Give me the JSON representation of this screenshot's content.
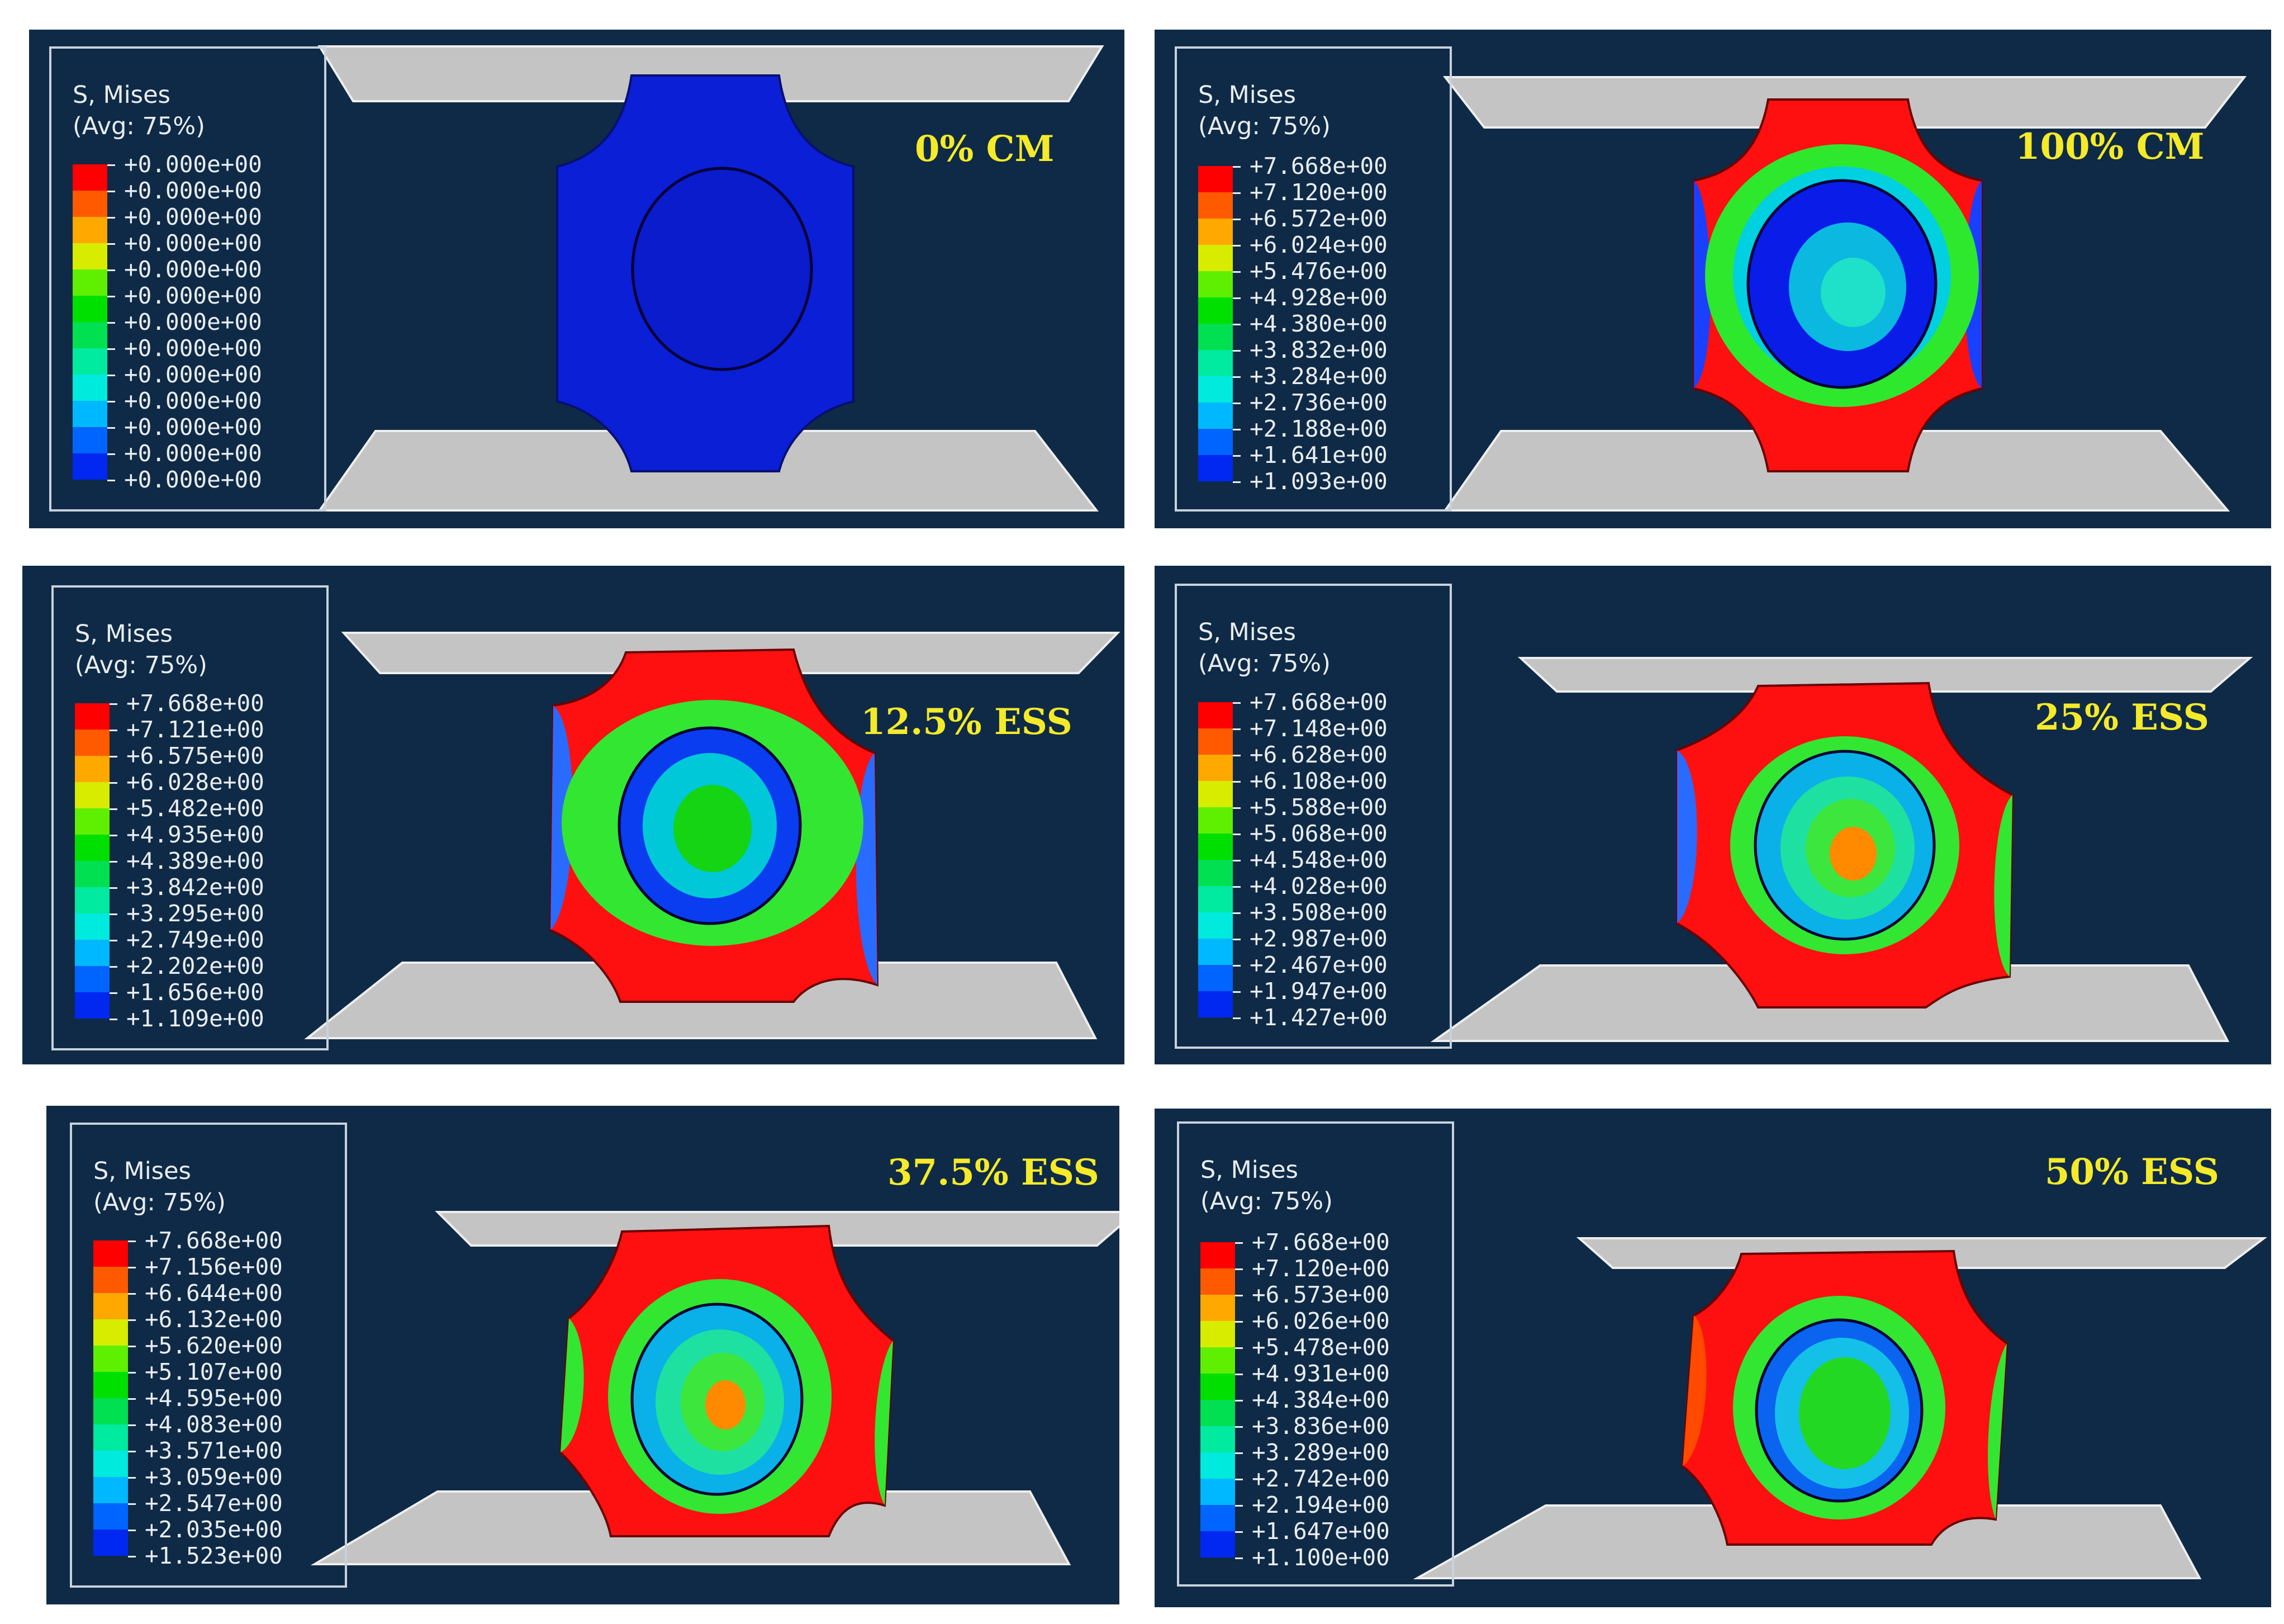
{
  "panels": [
    {
      "label": "0% CM",
      "legend_title": "S, Mises",
      "legend_subtitle": "(Avg: 75%)",
      "values": [
        "+0.000e+00",
        "+0.000e+00",
        "+0.000e+00",
        "+0.000e+00",
        "+0.000e+00",
        "+0.000e+00",
        "+0.000e+00",
        "+0.000e+00",
        "+0.000e+00",
        "+0.000e+00",
        "+0.000e+00",
        "+0.000e+00",
        "+0.000e+00"
      ]
    },
    {
      "label": "100% CM",
      "legend_title": "S, Mises",
      "legend_subtitle": "(Avg: 75%)",
      "values": [
        "+7.668e+00",
        "+7.120e+00",
        "+6.572e+00",
        "+6.024e+00",
        "+5.476e+00",
        "+4.928e+00",
        "+4.380e+00",
        "+3.832e+00",
        "+3.284e+00",
        "+2.736e+00",
        "+2.188e+00",
        "+1.641e+00",
        "+1.093e+00"
      ]
    },
    {
      "label": "12.5% ESS",
      "legend_title": "S, Mises",
      "legend_subtitle": "(Avg: 75%)",
      "values": [
        "+7.668e+00",
        "+7.121e+00",
        "+6.575e+00",
        "+6.028e+00",
        "+5.482e+00",
        "+4.935e+00",
        "+4.389e+00",
        "+3.842e+00",
        "+3.295e+00",
        "+2.749e+00",
        "+2.202e+00",
        "+1.656e+00",
        "+1.109e+00"
      ]
    },
    {
      "label": "25% ESS",
      "legend_title": "S, Mises",
      "legend_subtitle": "(Avg: 75%)",
      "values": [
        "+7.668e+00",
        "+7.148e+00",
        "+6.628e+00",
        "+6.108e+00",
        "+5.588e+00",
        "+5.068e+00",
        "+4.548e+00",
        "+4.028e+00",
        "+3.508e+00",
        "+2.987e+00",
        "+2.467e+00",
        "+1.947e+00",
        "+1.427e+00"
      ]
    },
    {
      "label": "37.5% ESS",
      "legend_title": "S, Mises",
      "legend_subtitle": "(Avg: 75%)",
      "values": [
        "+7.668e+00",
        "+7.156e+00",
        "+6.644e+00",
        "+6.132e+00",
        "+5.620e+00",
        "+5.107e+00",
        "+4.595e+00",
        "+4.083e+00",
        "+3.571e+00",
        "+3.059e+00",
        "+2.547e+00",
        "+2.035e+00",
        "+1.523e+00"
      ]
    },
    {
      "label": "50% ESS",
      "legend_title": "S, Mises",
      "legend_subtitle": "(Avg: 75%)",
      "values": [
        "+7.668e+00",
        "+7.120e+00",
        "+6.573e+00",
        "+6.026e+00",
        "+5.478e+00",
        "+4.931e+00",
        "+4.384e+00",
        "+3.836e+00",
        "+3.289e+00",
        "+2.742e+00",
        "+2.194e+00",
        "+1.647e+00",
        "+1.100e+00"
      ]
    }
  ],
  "colors": {
    "panel_bg": "#0f2a46",
    "label": "#f4ea2a",
    "plate": "#c4c4c4",
    "scale": [
      "#ff0000",
      "#ff5a00",
      "#ffa800",
      "#d8ec00",
      "#5ef000",
      "#00e000",
      "#00e050",
      "#00eaa0",
      "#00eadd",
      "#00b8ff",
      "#0064ff",
      "#0028f0",
      "#0000ee"
    ]
  }
}
